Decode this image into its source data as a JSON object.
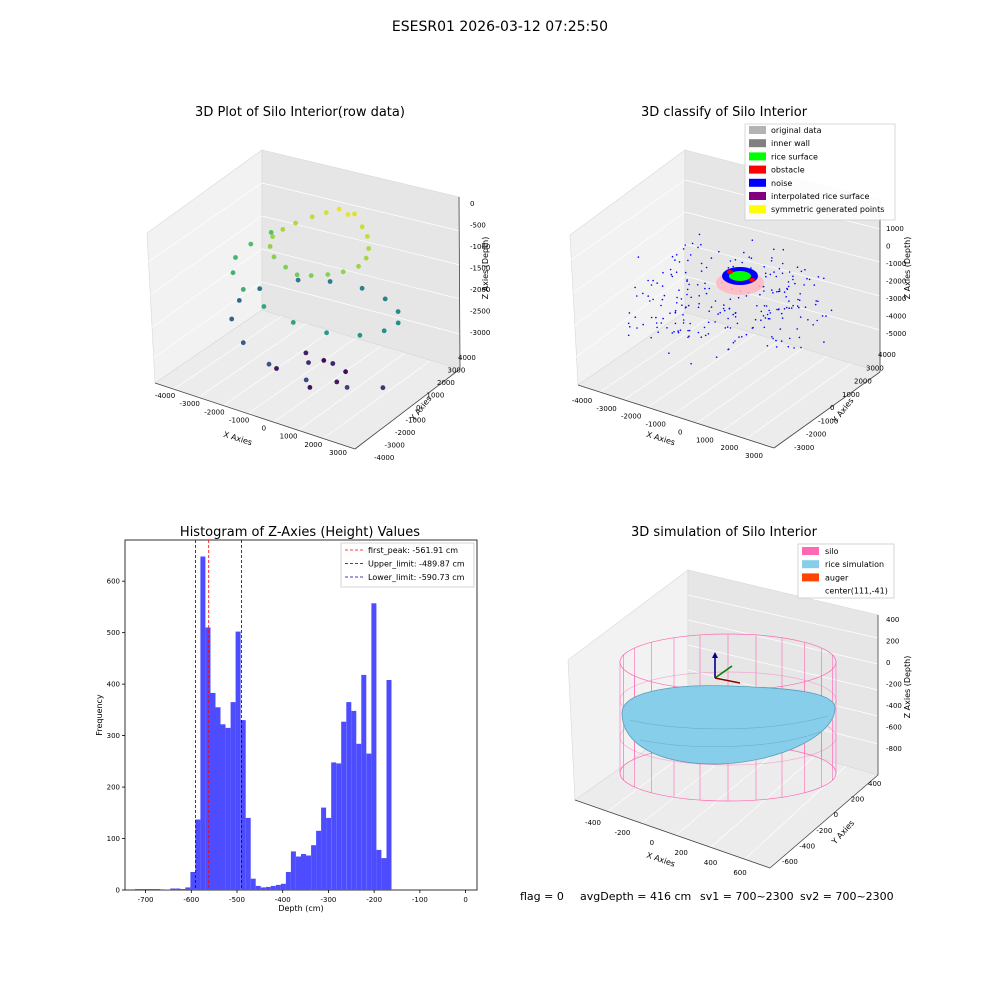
{
  "figure": {
    "suptitle": "ESESR01 2026-03-12 07:25:50",
    "footer": {
      "flag": "flag = 0",
      "avg_depth": "avgDepth = 416 cm",
      "sv1": "sv1 = 700~2300",
      "sv2": "sv2 = 700~2300"
    }
  },
  "chart_data": [
    {
      "type": "scatter",
      "projection": "3d",
      "title": "3D Plot of Silo Interior(row data)",
      "xlabel": "X Axies",
      "ylabel": "Y Axies",
      "zlabel": "Z Axies (Depth)",
      "x_ticks": [
        "-4000",
        "-3000",
        "-2000",
        "-1000",
        "0",
        "1000",
        "2000",
        "3000"
      ],
      "y_ticks": [
        "-4000",
        "-3000",
        "-2000",
        "-1000",
        "0",
        "1000",
        "2000",
        "3000",
        "4000"
      ],
      "z_ticks": [
        "0",
        "-500",
        "-1000",
        "-1500",
        "-2000",
        "-2500",
        "-3000"
      ],
      "xlim": [
        -4300,
        3500
      ],
      "ylim": [
        -4200,
        4200
      ],
      "zlim": [
        -3200,
        0
      ],
      "colormap": "viridis (color by depth)",
      "grid": true,
      "series": [
        {
          "points": [
            [
              -200,
              2000,
              -100
            ],
            [
              300,
              2200,
              -150
            ],
            [
              -600,
              1800,
              -200
            ],
            [
              800,
              1800,
              -250
            ],
            [
              -1000,
              1500,
              -300
            ],
            [
              1200,
              1400,
              -300
            ],
            [
              -1400,
              1000,
              -400
            ],
            [
              1500,
              900,
              -400
            ],
            [
              -1600,
              400,
              -450
            ],
            [
              1700,
              300,
              -450
            ],
            [
              -1700,
              -200,
              -500
            ],
            [
              1700,
              -300,
              -500
            ],
            [
              -1500,
              -800,
              -550
            ],
            [
              1400,
              -900,
              -550
            ],
            [
              -1100,
              -1300,
              -600
            ],
            [
              1000,
              -1300,
              -600
            ],
            [
              -500,
              -1600,
              -650
            ],
            [
              500,
              -1600,
              -650
            ],
            [
              0,
              -1700,
              -700
            ],
            [
              200,
              1900,
              -120
            ],
            [
              -2600,
              1500,
              -900
            ],
            [
              -2900,
              500,
              -1000
            ],
            [
              -3000,
              -500,
              -1100
            ],
            [
              -2600,
              -1500,
              -1150
            ],
            [
              -1800,
              -2300,
              -1200
            ],
            [
              -800,
              -2700,
              -1300
            ],
            [
              400,
              -2800,
              -1400
            ],
            [
              1500,
              -2400,
              -1500
            ],
            [
              2400,
              -1600,
              -1550
            ],
            [
              2800,
              -500,
              -1600
            ],
            [
              2800,
              600,
              -1650
            ],
            [
              2300,
              1600,
              -1700
            ],
            [
              1400,
              2400,
              -1750
            ],
            [
              300,
              2800,
              -1800
            ],
            [
              -900,
              2700,
              -1850
            ],
            [
              -1900,
              2200,
              -1900
            ],
            [
              -2800,
              1000,
              -2000
            ],
            [
              -3100,
              0,
              -2100
            ],
            [
              -2800,
              -1200,
              -2200
            ],
            [
              -1800,
              -2300,
              -2300
            ],
            [
              -500,
              -2900,
              -2400
            ],
            [
              900,
              -2800,
              -2500
            ],
            [
              2100,
              -2000,
              -2600
            ],
            [
              2900,
              -800,
              -2700
            ],
            [
              -200,
              -400,
              -2800
            ],
            [
              400,
              300,
              -2850
            ],
            [
              -800,
              600,
              -2900
            ],
            [
              1000,
              -600,
              -2950
            ],
            [
              -1200,
              -900,
              -3000
            ],
            [
              300,
              -1300,
              -3050
            ],
            [
              -400,
              1200,
              -3100
            ],
            [
              600,
              900,
              -3100
            ]
          ]
        }
      ]
    },
    {
      "type": "scatter",
      "projection": "3d",
      "title": "3D classify of Silo Interior",
      "xlabel": "X Axies",
      "ylabel": "Y Axies",
      "zlabel": "Z Axies (Depth)",
      "x_ticks": [
        "-4000",
        "-3000",
        "-2000",
        "-1000",
        "0",
        "1000",
        "2000",
        "3000"
      ],
      "y_ticks": [
        "-3000",
        "-2000",
        "-1000",
        "0",
        "1000",
        "2000",
        "3000",
        "4000"
      ],
      "z_ticks": [
        "1000",
        "0",
        "-1000",
        "-2000",
        "-3000",
        "-4000",
        "-5000"
      ],
      "xlim": [
        -4300,
        3500
      ],
      "ylim": [
        -3300,
        4200
      ],
      "zlim": [
        -5200,
        1200
      ],
      "legend": {
        "placement": "top-right",
        "entries": [
          {
            "label": "original data",
            "color": "#b3b3b3"
          },
          {
            "label": "inner wall",
            "color": "#808080"
          },
          {
            "label": "rice surface",
            "color": "#00ff00"
          },
          {
            "label": "obstacle",
            "color": "#ff0000"
          },
          {
            "label": "noise",
            "color": "#0000ff"
          },
          {
            "label": "interpolated rice surface",
            "color": "#800080"
          },
          {
            "label": "symmetric generated points",
            "color": "#ffff00"
          }
        ]
      },
      "grid": true
    },
    {
      "type": "bar",
      "subtype": "histogram",
      "title": "Histogram of Z-Axies (Height) Values",
      "xlabel": "Depth (cm)",
      "ylabel": "Frequency",
      "xlim": [
        -745,
        25
      ],
      "ylim": [
        0,
        680
      ],
      "x_ticks": [
        -700,
        -600,
        -500,
        -400,
        -300,
        -200,
        -100,
        0
      ],
      "y_ticks": [
        0,
        100,
        200,
        300,
        400,
        500,
        600
      ],
      "bar_color": "#4d4dff",
      "bin_width": 11,
      "bin_left_edges": [
        -723,
        -712,
        -701,
        -690,
        -679,
        -668,
        -657,
        -646,
        -635,
        -624,
        -613,
        -602,
        -591,
        -580,
        -569,
        -558,
        -547,
        -536,
        -525,
        -514,
        -503,
        -492,
        -481,
        -470,
        -459,
        -448,
        -437,
        -426,
        -415,
        -404,
        -393,
        -382,
        -371,
        -360,
        -349,
        -338,
        -327,
        -316,
        -305,
        -294,
        -283,
        -272,
        -261,
        -250,
        -239,
        -228,
        -217,
        -206,
        -195,
        -184,
        -173,
        -162,
        -151,
        -140,
        -129,
        -118,
        -107,
        -96,
        -85,
        -74,
        -63,
        -52,
        -41,
        -30,
        -19,
        -8
      ],
      "values": [
        2,
        2,
        2,
        2,
        2,
        0,
        1,
        3,
        3,
        2,
        5,
        35,
        137,
        648,
        510,
        383,
        355,
        322,
        315,
        365,
        502,
        330,
        140,
        22,
        8,
        5,
        6,
        8,
        10,
        12,
        35,
        75,
        65,
        70,
        67,
        87,
        115,
        160,
        140,
        248,
        246,
        327,
        365,
        348,
        284,
        418,
        265,
        557,
        78,
        62,
        408,
        0,
        0,
        0,
        0,
        0,
        0,
        0,
        0,
        0,
        0,
        0,
        0,
        0,
        0,
        0
      ],
      "reference_lines": [
        {
          "label": "first_peak: -561.91 cm",
          "x": -561.91,
          "color": "#ff0000",
          "style": "dashed"
        },
        {
          "label": "Upper_limit: -489.87 cm",
          "x": -489.87,
          "color": "#00008b",
          "style": "dashed"
        },
        {
          "label": "Lower_limit: -590.73 cm",
          "x": -590.73,
          "color": "#00008b",
          "style": "dashed"
        }
      ],
      "legend": {
        "placement": "top-right"
      }
    },
    {
      "type": "scatter",
      "projection": "3d",
      "title": "3D simulation of Silo Interior",
      "xlabel": "X Axies",
      "ylabel": "Y Axies",
      "zlabel": "Z Axies (Depth)",
      "x_ticks": [
        "-400",
        "-200",
        "0",
        "200",
        "400",
        "600"
      ],
      "y_ticks": [
        "-600",
        "-400",
        "-200",
        "0",
        "200",
        "400"
      ],
      "z_ticks": [
        "400",
        "200",
        "0",
        "-200",
        "-400",
        "-600",
        "-800"
      ],
      "xlim": [
        -500,
        700
      ],
      "ylim": [
        -700,
        500
      ],
      "zlim": [
        -900,
        450
      ],
      "legend": {
        "placement": "top-right",
        "entries": [
          {
            "label": "silo",
            "color": "#ff69b4"
          },
          {
            "label": "rice simulation",
            "color": "#87ceeb"
          },
          {
            "label": "auger",
            "color": "#ff4500"
          },
          {
            "label": "center(111,-41)",
            "color": ""
          }
        ]
      },
      "grid": true
    }
  ]
}
